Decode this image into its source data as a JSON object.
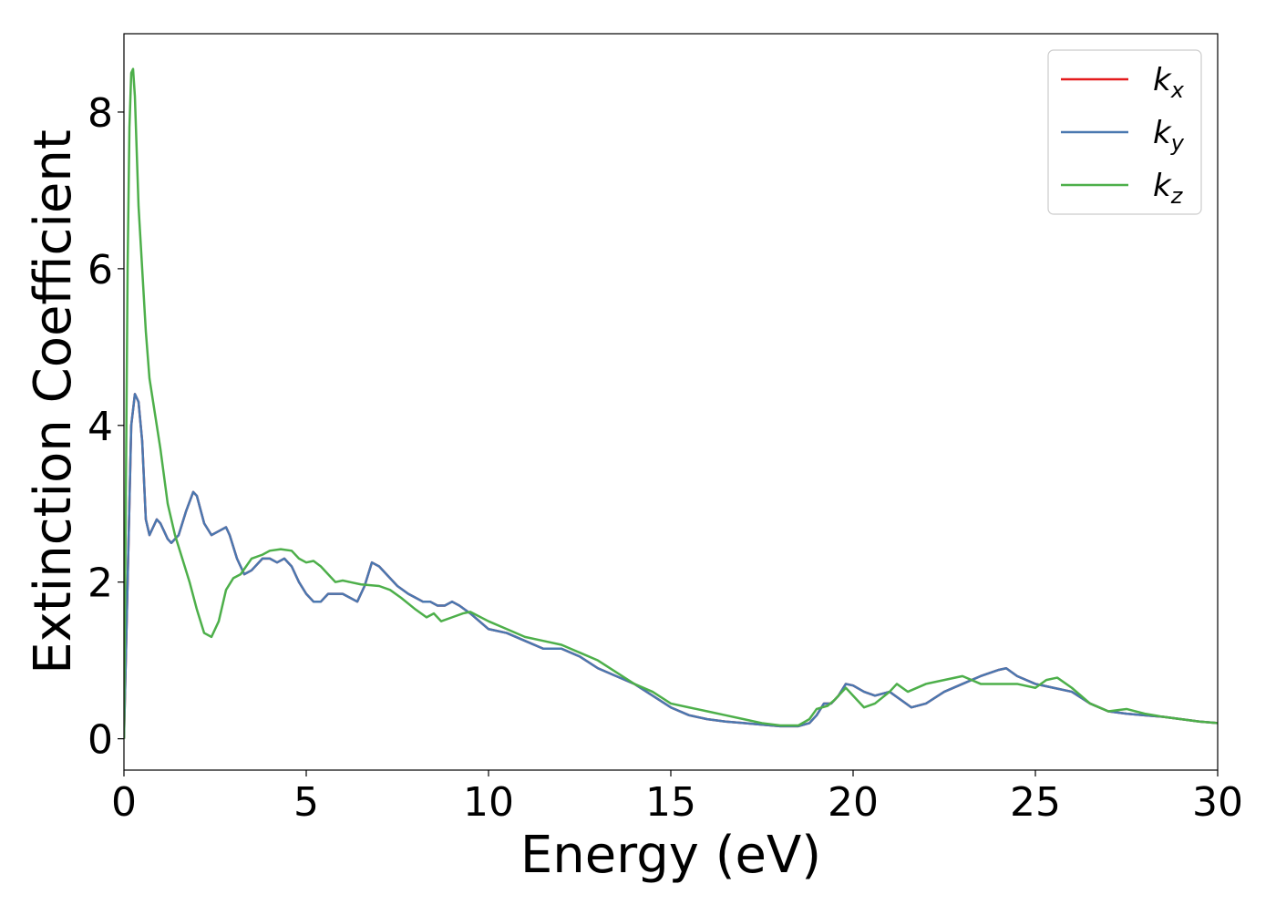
{
  "chart_data": {
    "type": "line",
    "title": "",
    "xlabel": "Energy (eV)",
    "ylabel": "Extinction Coefficient",
    "xlim": [
      0,
      30
    ],
    "ylim": [
      -0.4,
      9.0
    ],
    "xticks": [
      0,
      5,
      10,
      15,
      20,
      25,
      30
    ],
    "xtick_labels": [
      "0",
      "5",
      "10",
      "15",
      "20",
      "25",
      "30"
    ],
    "yticks": [
      0,
      2,
      4,
      6,
      8
    ],
    "ytick_labels": [
      "0",
      "2",
      "4",
      "6",
      "8"
    ],
    "grid": false,
    "legend": {
      "placement": "top-right",
      "entries": [
        "k_x",
        "k_y",
        "k_z"
      ]
    },
    "series": [
      {
        "name": "k_x",
        "base": "k",
        "sub": "x",
        "color": "#e41a1c",
        "x": [
          0,
          0.1,
          0.2,
          0.3,
          0.4,
          0.5,
          0.6,
          0.7,
          0.8,
          0.9,
          1.0,
          1.1,
          1.2,
          1.3,
          1.5,
          1.7,
          1.9,
          2.0,
          2.2,
          2.4,
          2.6,
          2.8,
          2.9,
          3.1,
          3.3,
          3.5,
          3.8,
          4.0,
          4.2,
          4.4,
          4.6,
          4.8,
          5.0,
          5.2,
          5.4,
          5.6,
          5.8,
          6.0,
          6.2,
          6.4,
          6.6,
          6.8,
          7.0,
          7.2,
          7.5,
          7.8,
          8.0,
          8.2,
          8.4,
          8.6,
          8.8,
          9.0,
          9.2,
          9.5,
          10,
          10.5,
          11,
          11.5,
          12,
          12.5,
          13,
          13.5,
          14,
          14.5,
          15,
          15.5,
          16,
          16.5,
          17,
          17.5,
          18,
          18.5,
          18.8,
          19,
          19.2,
          19.4,
          19.6,
          19.8,
          20,
          20.3,
          20.6,
          21,
          21.3,
          21.6,
          22,
          22.5,
          23,
          23.5,
          24,
          24.2,
          24.5,
          25,
          25.5,
          26,
          26.5,
          27,
          27.5,
          28,
          28.5,
          29,
          29.5,
          30
        ],
        "y": [
          0,
          2.0,
          4.0,
          4.4,
          4.3,
          3.8,
          2.8,
          2.6,
          2.7,
          2.8,
          2.75,
          2.65,
          2.55,
          2.5,
          2.6,
          2.9,
          3.15,
          3.1,
          2.75,
          2.6,
          2.65,
          2.7,
          2.6,
          2.3,
          2.1,
          2.15,
          2.3,
          2.3,
          2.25,
          2.3,
          2.2,
          2.0,
          1.85,
          1.75,
          1.75,
          1.85,
          1.85,
          1.85,
          1.8,
          1.75,
          1.95,
          2.25,
          2.2,
          2.1,
          1.95,
          1.85,
          1.8,
          1.75,
          1.75,
          1.7,
          1.7,
          1.75,
          1.7,
          1.6,
          1.4,
          1.35,
          1.25,
          1.15,
          1.15,
          1.05,
          0.9,
          0.8,
          0.7,
          0.55,
          0.4,
          0.3,
          0.25,
          0.22,
          0.2,
          0.18,
          0.16,
          0.16,
          0.2,
          0.3,
          0.45,
          0.45,
          0.55,
          0.7,
          0.68,
          0.6,
          0.55,
          0.6,
          0.5,
          0.4,
          0.45,
          0.6,
          0.7,
          0.8,
          0.88,
          0.9,
          0.8,
          0.7,
          0.65,
          0.6,
          0.45,
          0.35,
          0.32,
          0.3,
          0.28,
          0.25,
          0.22,
          0.2
        ]
      },
      {
        "name": "k_y",
        "base": "k",
        "sub": "y",
        "color": "#4a78b0",
        "x": [
          0,
          0.1,
          0.2,
          0.3,
          0.4,
          0.5,
          0.6,
          0.7,
          0.8,
          0.9,
          1.0,
          1.1,
          1.2,
          1.3,
          1.5,
          1.7,
          1.9,
          2.0,
          2.2,
          2.4,
          2.6,
          2.8,
          2.9,
          3.1,
          3.3,
          3.5,
          3.8,
          4.0,
          4.2,
          4.4,
          4.6,
          4.8,
          5.0,
          5.2,
          5.4,
          5.6,
          5.8,
          6.0,
          6.2,
          6.4,
          6.6,
          6.8,
          7.0,
          7.2,
          7.5,
          7.8,
          8.0,
          8.2,
          8.4,
          8.6,
          8.8,
          9.0,
          9.2,
          9.5,
          10,
          10.5,
          11,
          11.5,
          12,
          12.5,
          13,
          13.5,
          14,
          14.5,
          15,
          15.5,
          16,
          16.5,
          17,
          17.5,
          18,
          18.5,
          18.8,
          19,
          19.2,
          19.4,
          19.6,
          19.8,
          20,
          20.3,
          20.6,
          21,
          21.3,
          21.6,
          22,
          22.5,
          23,
          23.5,
          24,
          24.2,
          24.5,
          25,
          25.5,
          26,
          26.5,
          27,
          27.5,
          28,
          28.5,
          29,
          29.5,
          30
        ],
        "y": [
          0,
          2.0,
          4.0,
          4.4,
          4.3,
          3.8,
          2.8,
          2.6,
          2.7,
          2.8,
          2.75,
          2.65,
          2.55,
          2.5,
          2.6,
          2.9,
          3.15,
          3.1,
          2.75,
          2.6,
          2.65,
          2.7,
          2.6,
          2.3,
          2.1,
          2.15,
          2.3,
          2.3,
          2.25,
          2.3,
          2.2,
          2.0,
          1.85,
          1.75,
          1.75,
          1.85,
          1.85,
          1.85,
          1.8,
          1.75,
          1.95,
          2.25,
          2.2,
          2.1,
          1.95,
          1.85,
          1.8,
          1.75,
          1.75,
          1.7,
          1.7,
          1.75,
          1.7,
          1.6,
          1.4,
          1.35,
          1.25,
          1.15,
          1.15,
          1.05,
          0.9,
          0.8,
          0.7,
          0.55,
          0.4,
          0.3,
          0.25,
          0.22,
          0.2,
          0.18,
          0.16,
          0.16,
          0.2,
          0.3,
          0.45,
          0.45,
          0.55,
          0.7,
          0.68,
          0.6,
          0.55,
          0.6,
          0.5,
          0.4,
          0.45,
          0.6,
          0.7,
          0.8,
          0.88,
          0.9,
          0.8,
          0.7,
          0.65,
          0.6,
          0.45,
          0.35,
          0.32,
          0.3,
          0.28,
          0.25,
          0.22,
          0.2
        ]
      },
      {
        "name": "k_z",
        "base": "k",
        "sub": "z",
        "color": "#4daf4a",
        "x": [
          0,
          0.05,
          0.1,
          0.15,
          0.2,
          0.25,
          0.3,
          0.35,
          0.4,
          0.5,
          0.6,
          0.7,
          0.8,
          1.0,
          1.2,
          1.4,
          1.6,
          1.8,
          2.0,
          2.2,
          2.4,
          2.6,
          2.8,
          3.0,
          3.2,
          3.5,
          3.8,
          4.0,
          4.3,
          4.6,
          4.8,
          5.0,
          5.2,
          5.4,
          5.6,
          5.8,
          6.0,
          6.2,
          6.5,
          7.0,
          7.3,
          7.6,
          8.0,
          8.3,
          8.5,
          8.7,
          9.0,
          9.3,
          9.5,
          10,
          10.5,
          11,
          11.5,
          12,
          12.5,
          13,
          13.5,
          14,
          14.5,
          15,
          15.5,
          16,
          16.5,
          17,
          17.5,
          18,
          18.5,
          18.8,
          19,
          19.3,
          19.5,
          19.8,
          20,
          20.3,
          20.6,
          21,
          21.2,
          21.5,
          22,
          22.5,
          23,
          23.5,
          24,
          24.5,
          25,
          25.3,
          25.6,
          26,
          26.5,
          27,
          27.5,
          28,
          28.5,
          29,
          29.5,
          30
        ],
        "y": [
          0,
          3.0,
          6.0,
          7.8,
          8.5,
          8.55,
          8.2,
          7.5,
          6.8,
          6.0,
          5.2,
          4.6,
          4.3,
          3.7,
          3.0,
          2.6,
          2.3,
          2.0,
          1.65,
          1.35,
          1.3,
          1.5,
          1.9,
          2.05,
          2.1,
          2.3,
          2.35,
          2.4,
          2.42,
          2.4,
          2.3,
          2.25,
          2.27,
          2.2,
          2.1,
          2.0,
          2.02,
          2.0,
          1.97,
          1.95,
          1.9,
          1.8,
          1.65,
          1.55,
          1.6,
          1.5,
          1.55,
          1.6,
          1.62,
          1.5,
          1.4,
          1.3,
          1.25,
          1.2,
          1.1,
          1.0,
          0.85,
          0.7,
          0.6,
          0.45,
          0.4,
          0.35,
          0.3,
          0.25,
          0.2,
          0.17,
          0.17,
          0.25,
          0.38,
          0.42,
          0.5,
          0.65,
          0.55,
          0.4,
          0.45,
          0.6,
          0.7,
          0.6,
          0.7,
          0.75,
          0.8,
          0.7,
          0.7,
          0.7,
          0.65,
          0.75,
          0.78,
          0.65,
          0.45,
          0.35,
          0.38,
          0.32,
          0.28,
          0.25,
          0.22,
          0.2
        ]
      }
    ]
  }
}
